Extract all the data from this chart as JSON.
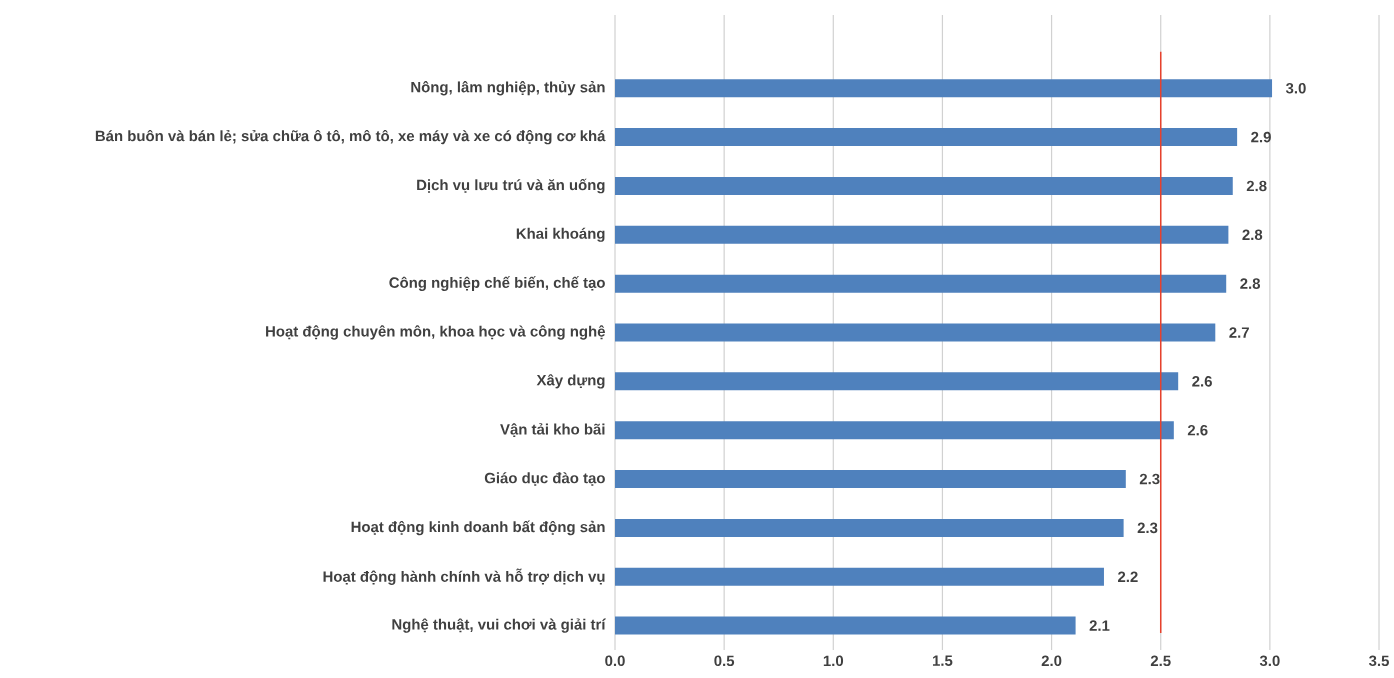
{
  "chart_data": {
    "type": "bar",
    "orientation": "horizontal",
    "categories": [
      "Nông, lâm nghiệp, thủy sản",
      "Bán buôn và bán lẻ; sửa chữa ô tô, mô tô, xe máy và xe có động cơ khá",
      "Dịch vụ lưu trú và ăn uống",
      "Khai khoáng",
      "Công nghiệp chế biến, chế tạo",
      "Hoạt động chuyên môn, khoa học và công nghệ",
      "Xây dựng",
      "Vận tải kho bãi",
      "Giáo dục đào tạo",
      "Hoạt động kinh doanh bất động sản",
      "Hoạt động hành chính và hỗ trợ dịch vụ",
      "Nghệ thuật, vui chơi và giải trí"
    ],
    "values": [
      3.01,
      2.85,
      2.83,
      2.81,
      2.8,
      2.75,
      2.58,
      2.56,
      2.34,
      2.33,
      2.24,
      2.11
    ],
    "value_labels": [
      "3.0",
      "2.9",
      "2.8",
      "2.8",
      "2.8",
      "2.7",
      "2.6",
      "2.6",
      "2.3",
      "2.3",
      "2.2",
      "2.1"
    ],
    "color": "#4f81bd",
    "xlim": [
      0,
      3.5
    ],
    "xticks": [
      "0.0",
      "0.5",
      "1.0",
      "1.5",
      "2.0",
      "2.5",
      "3.0",
      "3.5"
    ],
    "grid": "x",
    "ref_lines": [
      {
        "axis": "x",
        "value": 2.5,
        "color": "#e8412c"
      }
    ]
  }
}
